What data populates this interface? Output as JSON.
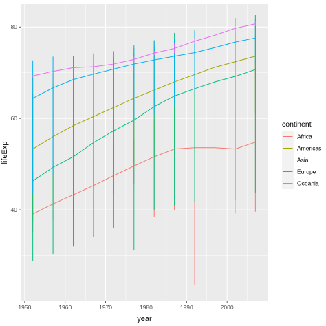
{
  "chart_data": {
    "type": "line",
    "xlabel": "year",
    "ylabel": "lifeExp",
    "xlim": [
      1949,
      2010
    ],
    "ylim": [
      20,
      85
    ],
    "x_ticks": [
      1950,
      1960,
      1970,
      1980,
      1990,
      2000
    ],
    "y_ticks": [
      40,
      60,
      80
    ],
    "grid": true,
    "legend_title": "continent",
    "legend_position": "right",
    "x": [
      1952,
      1957,
      1962,
      1967,
      1972,
      1977,
      1982,
      1987,
      1992,
      1997,
      2002,
      2007
    ],
    "series": [
      {
        "name": "Africa",
        "color": "#F8766D",
        "mean": [
          39.1,
          41.3,
          43.3,
          45.3,
          47.5,
          49.6,
          51.6,
          53.3,
          53.6,
          53.6,
          53.3,
          54.8
        ],
        "extent": [
          [
            35.0,
            48.5
          ],
          [
            37.5,
            50.6
          ],
          [
            39.5,
            52.4
          ],
          [
            41.5,
            51.4
          ],
          [
            43.5,
            54.1
          ],
          [
            45.5,
            55.5
          ],
          [
            38.4,
            59.8
          ],
          [
            39.9,
            61.4
          ],
          [
            23.6,
            66.2
          ],
          [
            36.1,
            68.5
          ],
          [
            39.2,
            70.7
          ],
          [
            39.6,
            72.8
          ]
        ]
      },
      {
        "name": "Americas",
        "color": "#A3A500",
        "mean": [
          53.3,
          56.0,
          58.4,
          60.4,
          62.4,
          64.4,
          66.2,
          68.0,
          69.6,
          71.2,
          72.4,
          73.6
        ],
        "extent": [
          [
            37.6,
            68.8
          ],
          [
            40.7,
            69.9
          ],
          [
            43.4,
            71.3
          ],
          [
            45.0,
            72.1
          ],
          [
            46.7,
            72.9
          ],
          [
            49.9,
            74.2
          ],
          [
            51.5,
            75.8
          ],
          [
            53.6,
            76.9
          ],
          [
            55.1,
            77.9
          ],
          [
            56.7,
            78.6
          ],
          [
            58.1,
            79.8
          ],
          [
            60.9,
            80.7
          ]
        ]
      },
      {
        "name": "Asia",
        "color": "#00BF7D",
        "mean": [
          46.3,
          49.3,
          51.6,
          54.7,
          57.3,
          59.6,
          62.6,
          64.9,
          66.5,
          68.0,
          69.2,
          70.7
        ],
        "extent": [
          [
            28.8,
            65.4
          ],
          [
            30.3,
            67.8
          ],
          [
            32.0,
            69.4
          ],
          [
            34.0,
            71.4
          ],
          [
            36.1,
            73.4
          ],
          [
            31.2,
            75.4
          ],
          [
            39.9,
            77.1
          ],
          [
            40.8,
            78.7
          ],
          [
            41.7,
            79.4
          ],
          [
            41.8,
            80.7
          ],
          [
            42.1,
            82.0
          ],
          [
            43.8,
            82.6
          ]
        ]
      },
      {
        "name": "Europe",
        "color": "#00B0F6",
        "mean": [
          64.4,
          66.7,
          68.5,
          69.7,
          70.8,
          71.9,
          72.8,
          73.6,
          74.4,
          75.5,
          76.7,
          77.6
        ],
        "extent": [
          [
            43.6,
            72.7
          ],
          [
            48.1,
            73.5
          ],
          [
            52.1,
            73.7
          ],
          [
            54.3,
            74.2
          ],
          [
            57.0,
            74.7
          ],
          [
            59.5,
            76.1
          ],
          [
            61.0,
            76.9
          ],
          [
            63.1,
            77.4
          ],
          [
            66.1,
            78.8
          ],
          [
            68.8,
            79.4
          ],
          [
            70.8,
            80.6
          ],
          [
            71.8,
            81.8
          ]
        ]
      },
      {
        "name": "Oceania",
        "color": "#E76BF3",
        "mean": [
          69.3,
          70.3,
          71.1,
          71.3,
          71.9,
          72.9,
          74.3,
          75.3,
          76.9,
          78.2,
          79.7,
          80.7
        ],
        "extent": [
          [
            69.1,
            69.4
          ],
          [
            70.3,
            70.3
          ],
          [
            71.0,
            71.2
          ],
          [
            71.1,
            71.5
          ],
          [
            71.9,
            71.9
          ],
          [
            72.2,
            73.5
          ],
          [
            73.8,
            74.7
          ],
          [
            74.3,
            76.3
          ],
          [
            76.3,
            77.6
          ],
          [
            77.6,
            78.8
          ],
          [
            79.1,
            80.4
          ],
          [
            80.2,
            81.2
          ]
        ]
      }
    ]
  }
}
